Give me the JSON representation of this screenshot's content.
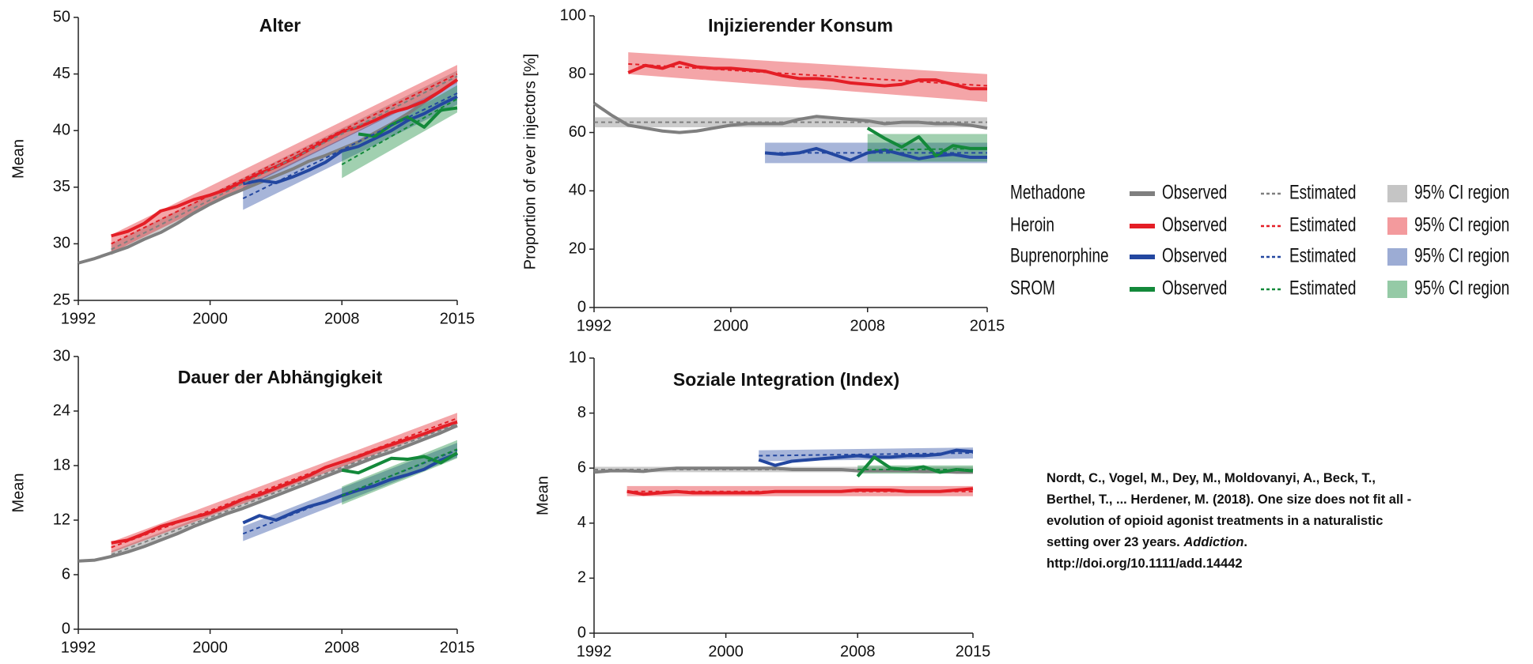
{
  "legend": {
    "series": [
      {
        "name": "Methadone",
        "color": "#7f7f7f"
      },
      {
        "name": "Heroin",
        "color": "#e41e26"
      },
      {
        "name": "Buprenorphine",
        "color": "#2347a0"
      },
      {
        "name": "SROM",
        "color": "#13893a"
      }
    ],
    "styles": [
      "Observed",
      "Estimated",
      "95% CI region"
    ]
  },
  "citation": {
    "before": "Nordt, C., Vogel, M., Dey, M., Moldovanyi, A., Beck, T., Berthel, T., ... Herdener, M. (2018). One size does not fit all -evolution of opioid agonist treatments in a naturalistic setting over 23 years. ",
    "journal": "Addiction",
    "after": ". http://doi.org/10.1111/add.14442"
  },
  "chart_data": [
    {
      "type": "line",
      "title": "Alter",
      "y_label": "Mean",
      "xlim": [
        1992,
        2015
      ],
      "xticks": [
        1992,
        2000,
        2008,
        2015
      ],
      "ylim": [
        25,
        50
      ],
      "yticks": [
        25,
        30,
        35,
        40,
        45,
        50
      ],
      "series": [
        {
          "x": [
            1992,
            1993,
            1994,
            1995,
            1996,
            1997,
            1998,
            1999,
            2000,
            2001,
            2002,
            2003,
            2004,
            2005,
            2006,
            2007,
            2008,
            2009,
            2010,
            2011,
            2012,
            2013,
            2014,
            2015
          ],
          "values": [
            28.3,
            28.7,
            29.2,
            29.7,
            30.4,
            31,
            31.8,
            32.7,
            33.5,
            34.2,
            34.8,
            35.4,
            36,
            36.6,
            37.3,
            37.8,
            38.4,
            39,
            39.8,
            40.6,
            41.5,
            42.5,
            43.5,
            44.5
          ],
          "trend_x": [
            1994,
            2015
          ],
          "estimated": [
            29.5,
            44.8
          ],
          "ci_lower": [
            29,
            44.3
          ],
          "ci_upper": [
            30,
            45.3
          ]
        },
        {
          "x": [
            1994,
            1995,
            1996,
            1997,
            1998,
            1999,
            2000,
            2001,
            2002,
            2003,
            2004,
            2005,
            2006,
            2007,
            2008,
            2009,
            2010,
            2011,
            2012,
            2013,
            2014,
            2015
          ],
          "values": [
            30.7,
            31.1,
            31.8,
            32.9,
            33.3,
            33.9,
            34.3,
            34.8,
            35.5,
            36.2,
            36.8,
            37.5,
            38.3,
            39.1,
            39.9,
            40.3,
            40.9,
            41.6,
            42,
            42.6,
            43.5,
            44.5
          ],
          "trend_x": [
            1994,
            2015
          ],
          "estimated": [
            30,
            45
          ],
          "ci_lower": [
            29.2,
            44.2
          ],
          "ci_upper": [
            30.8,
            45.8
          ]
        },
        {
          "x": [
            2002,
            2003,
            2004,
            2005,
            2006,
            2007,
            2008,
            2009,
            2010,
            2011,
            2012,
            2013,
            2014,
            2015
          ],
          "values": [
            35.3,
            35.6,
            35.4,
            35.9,
            36.5,
            37.2,
            38.2,
            38.6,
            39.3,
            40,
            40.9,
            41.5,
            42.3,
            43
          ],
          "trend_x": [
            2002,
            2015
          ],
          "estimated": [
            34,
            43.3
          ],
          "ci_lower": [
            33,
            42.3
          ],
          "ci_upper": [
            35,
            44.3
          ]
        },
        {
          "x": [
            2009,
            2010,
            2011,
            2012,
            2013,
            2014,
            2015
          ],
          "values": [
            39.7,
            39.5,
            40.5,
            41.2,
            40.3,
            41.8,
            42
          ],
          "trend_x": [
            2008,
            2015
          ],
          "estimated": [
            37,
            42.8
          ],
          "ci_lower": [
            35.8,
            41.6
          ],
          "ci_upper": [
            38.2,
            44
          ]
        }
      ]
    },
    {
      "type": "line",
      "title": "Injizierender Konsum",
      "y_label": "Proportion of ever injectors [%]",
      "xlim": [
        1992,
        2015
      ],
      "xticks": [
        1992,
        2000,
        2008,
        2015
      ],
      "ylim": [
        0,
        100
      ],
      "yticks": [
        0,
        20,
        40,
        60,
        80,
        100
      ],
      "series": [
        {
          "x": [
            1992,
            1993,
            1994,
            1995,
            1996,
            1997,
            1998,
            1999,
            2000,
            2001,
            2002,
            2003,
            2004,
            2005,
            2006,
            2007,
            2008,
            2009,
            2010,
            2011,
            2012,
            2013,
            2014,
            2015
          ],
          "values": [
            70,
            66,
            62.5,
            61.5,
            60.5,
            60,
            60.5,
            61.5,
            62.5,
            63,
            63,
            63,
            64.5,
            65.5,
            65,
            64.5,
            64,
            63,
            63.5,
            63.5,
            63,
            63,
            62.5,
            61.5
          ],
          "trend_x": [
            1992,
            2015
          ],
          "estimated": [
            63.5,
            63.5
          ],
          "ci_lower": [
            61.8,
            61.8
          ],
          "ci_upper": [
            65.2,
            65.2
          ]
        },
        {
          "x": [
            1994,
            1995,
            1996,
            1997,
            1998,
            1999,
            2000,
            2001,
            2002,
            2003,
            2004,
            2005,
            2006,
            2007,
            2008,
            2009,
            2010,
            2011,
            2012,
            2013,
            2014,
            2015
          ],
          "values": [
            80.5,
            83,
            82,
            84,
            82.5,
            82,
            82,
            81.5,
            81,
            79.5,
            78.5,
            78.5,
            78,
            77,
            76.5,
            76,
            76.5,
            78,
            78,
            76.5,
            75,
            75
          ],
          "trend_x": [
            1994,
            2015
          ],
          "estimated": [
            83.5,
            76
          ],
          "ci_lower": [
            80,
            70.5
          ],
          "ci_upper": [
            87.5,
            80
          ]
        },
        {
          "x": [
            2002,
            2003,
            2004,
            2005,
            2006,
            2007,
            2008,
            2009,
            2010,
            2011,
            2012,
            2013,
            2014,
            2015
          ],
          "values": [
            53,
            52.5,
            53,
            54.5,
            52.5,
            50.5,
            53,
            54,
            52.5,
            51,
            52,
            52.5,
            51.5,
            51.5
          ],
          "trend_x": [
            2002,
            2015
          ],
          "estimated": [
            53,
            53
          ],
          "ci_lower": [
            49.5,
            49.5
          ],
          "ci_upper": [
            56.5,
            56.5
          ]
        },
        {
          "x": [
            2008,
            2009,
            2010,
            2011,
            2012,
            2013,
            2014,
            2015
          ],
          "values": [
            61.5,
            58,
            55,
            58.5,
            52,
            55.5,
            54.5,
            54.5
          ],
          "trend_x": [
            2008,
            2015
          ],
          "estimated": [
            54,
            54.5
          ],
          "ci_lower": [
            50,
            50
          ],
          "ci_upper": [
            59.5,
            59.5
          ]
        }
      ]
    },
    {
      "type": "line",
      "title": "Dauer der Abhängigkeit",
      "y_label": "Mean",
      "xlim": [
        1992,
        2015
      ],
      "xticks": [
        1992,
        2000,
        2008,
        2015
      ],
      "ylim": [
        0,
        30
      ],
      "yticks": [
        0,
        6,
        12,
        18,
        24,
        30
      ],
      "series": [
        {
          "x": [
            1992,
            1993,
            1994,
            1995,
            1996,
            1997,
            1998,
            1999,
            2000,
            2001,
            2002,
            2003,
            2004,
            2005,
            2006,
            2007,
            2008,
            2009,
            2010,
            2011,
            2012,
            2013,
            2014,
            2015
          ],
          "values": [
            7.5,
            7.6,
            8,
            8.5,
            9.1,
            9.8,
            10.5,
            11.3,
            12,
            12.7,
            13.3,
            14,
            14.7,
            15.4,
            16.1,
            16.8,
            17.5,
            18.2,
            18.9,
            19.5,
            20.2,
            20.9,
            21.6,
            22.4
          ],
          "trend_x": [
            1994,
            2015
          ],
          "estimated": [
            8.2,
            22.6
          ],
          "ci_lower": [
            7.8,
            22.2
          ],
          "ci_upper": [
            8.6,
            23
          ]
        },
        {
          "x": [
            1994,
            1995,
            1996,
            1997,
            1998,
            1999,
            2000,
            2001,
            2002,
            2003,
            2004,
            2005,
            2006,
            2007,
            2008,
            2009,
            2010,
            2011,
            2012,
            2013,
            2014,
            2015
          ],
          "values": [
            9.5,
            9.8,
            10.5,
            11.3,
            11.8,
            12.3,
            12.8,
            13.5,
            14.3,
            14.8,
            15.5,
            16.2,
            16.9,
            17.8,
            18.4,
            19,
            19.7,
            20.3,
            20.9,
            21.5,
            22.2,
            22.8
          ],
          "trend_x": [
            1994,
            2015
          ],
          "estimated": [
            9,
            23.2
          ],
          "ci_lower": [
            8.4,
            22.6
          ],
          "ci_upper": [
            9.6,
            23.8
          ]
        },
        {
          "x": [
            2002,
            2003,
            2004,
            2005,
            2006,
            2007,
            2008,
            2009,
            2010,
            2011,
            2012,
            2013,
            2014,
            2015
          ],
          "values": [
            11.7,
            12.5,
            12,
            12.8,
            13.5,
            14,
            14.7,
            15.3,
            15.8,
            16.5,
            17,
            17.6,
            18.6,
            19.3
          ],
          "trend_x": [
            2002,
            2015
          ],
          "estimated": [
            10.5,
            19.7
          ],
          "ci_lower": [
            9.7,
            18.9
          ],
          "ci_upper": [
            11.3,
            20.5
          ]
        },
        {
          "x": [
            2008,
            2009,
            2010,
            2011,
            2012,
            2013,
            2014,
            2015
          ],
          "values": [
            17.5,
            17.2,
            18,
            18.8,
            18.7,
            19,
            18.3,
            19.4
          ],
          "trend_x": [
            2008,
            2015
          ],
          "estimated": [
            14.7,
            19.8
          ],
          "ci_lower": [
            13.7,
            18.8
          ],
          "ci_upper": [
            15.7,
            20.8
          ]
        }
      ]
    },
    {
      "type": "line",
      "title": "Soziale Integration (Index)",
      "y_label": "Mean",
      "xlim": [
        1992,
        2015
      ],
      "xticks": [
        1992,
        2000,
        2008,
        2015
      ],
      "ylim": [
        0,
        10
      ],
      "yticks": [
        0,
        2,
        4,
        6,
        8,
        10
      ],
      "series": [
        {
          "x": [
            1992,
            1993,
            1994,
            1995,
            1996,
            1997,
            1998,
            1999,
            2000,
            2001,
            2002,
            2003,
            2004,
            2005,
            2006,
            2007,
            2008,
            2009,
            2010,
            2011,
            2012,
            2013,
            2014,
            2015
          ],
          "values": [
            5.85,
            5.9,
            5.9,
            5.88,
            5.95,
            6,
            6,
            6,
            6,
            6,
            6,
            6,
            5.95,
            5.95,
            5.95,
            5.95,
            5.9,
            5.9,
            5.9,
            5.9,
            5.88,
            5.88,
            5.85,
            5.85
          ],
          "trend_x": [
            1992,
            2015
          ],
          "estimated": [
            5.95,
            5.95
          ],
          "ci_lower": [
            5.85,
            5.85
          ],
          "ci_upper": [
            6.05,
            6.05
          ]
        },
        {
          "x": [
            1994,
            1995,
            1996,
            1997,
            1998,
            1999,
            2000,
            2001,
            2002,
            2003,
            2004,
            2005,
            2006,
            2007,
            2008,
            2009,
            2010,
            2011,
            2012,
            2013,
            2014,
            2015
          ],
          "values": [
            5.15,
            5.05,
            5.1,
            5.15,
            5.1,
            5.1,
            5.1,
            5.1,
            5.1,
            5.15,
            5.15,
            5.15,
            5.15,
            5.15,
            5.2,
            5.2,
            5.2,
            5.15,
            5.15,
            5.15,
            5.2,
            5.25
          ],
          "trend_x": [
            1994,
            2015
          ],
          "estimated": [
            5.15,
            5.15
          ],
          "ci_lower": [
            4.98,
            4.98
          ],
          "ci_upper": [
            5.35,
            5.35
          ]
        },
        {
          "x": [
            2002,
            2003,
            2004,
            2005,
            2006,
            2007,
            2008,
            2009,
            2010,
            2011,
            2012,
            2013,
            2014,
            2015
          ],
          "values": [
            6.3,
            6.1,
            6.25,
            6.3,
            6.35,
            6.4,
            6.45,
            6.4,
            6.4,
            6.45,
            6.45,
            6.5,
            6.65,
            6.6
          ],
          "trend_x": [
            2002,
            2015
          ],
          "estimated": [
            6.45,
            6.55
          ],
          "ci_lower": [
            6.25,
            6.35
          ],
          "ci_upper": [
            6.65,
            6.75
          ]
        },
        {
          "x": [
            2008,
            2009,
            2010,
            2011,
            2012,
            2013,
            2014,
            2015
          ],
          "values": [
            5.7,
            6.4,
            6,
            5.95,
            6.05,
            5.85,
            5.95,
            5.9
          ],
          "trend_x": [
            2008,
            2015
          ],
          "estimated": [
            5.95,
            5.95
          ],
          "ci_lower": [
            5.8,
            5.8
          ],
          "ci_upper": [
            6.1,
            6.1
          ]
        }
      ]
    }
  ]
}
